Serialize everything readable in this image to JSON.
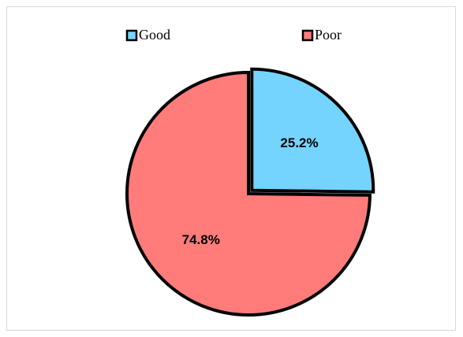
{
  "chart_data": {
    "type": "pie",
    "categories": [
      "Good",
      "Poor"
    ],
    "values": [
      25.2,
      74.8
    ],
    "value_labels": [
      "25.2%",
      "74.8%"
    ],
    "colors": [
      "#75d4fd",
      "#ff7c7b"
    ],
    "legend_position": "top",
    "exploded_slice": "Good",
    "title": ""
  }
}
